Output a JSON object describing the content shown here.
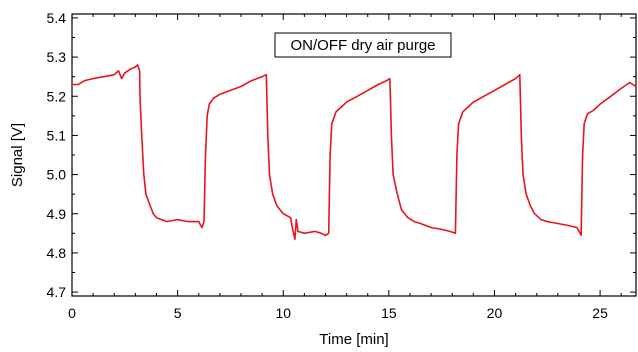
{
  "chart_data": {
    "type": "line",
    "title": "",
    "xlabel": "Time [min]",
    "ylabel": "Signal [V]",
    "xlim": [
      0,
      26.7
    ],
    "ylim": [
      4.69,
      5.41
    ],
    "xticks": [
      0,
      5,
      10,
      15,
      20,
      25
    ],
    "xtick_labels": [
      "0",
      "5",
      "10",
      "15",
      "20",
      "25"
    ],
    "yticks": [
      4.7,
      4.8,
      4.9,
      5.0,
      5.1,
      5.2,
      5.3,
      5.4
    ],
    "ytick_labels": [
      "4.7",
      "4.8",
      "4.9",
      "5.0",
      "5.1",
      "5.2",
      "5.3",
      "5.4"
    ],
    "grid": false,
    "annotation": "ON/OFF dry air purge",
    "series": [
      {
        "color": "#e8141b",
        "points": [
          [
            0.0,
            5.23
          ],
          [
            0.3,
            5.23
          ],
          [
            0.6,
            5.24
          ],
          [
            1.0,
            5.245
          ],
          [
            1.5,
            5.25
          ],
          [
            2.0,
            5.255
          ],
          [
            2.2,
            5.265
          ],
          [
            2.35,
            5.245
          ],
          [
            2.5,
            5.26
          ],
          [
            2.8,
            5.27
          ],
          [
            3.0,
            5.275
          ],
          [
            3.1,
            5.28
          ],
          [
            3.2,
            5.265
          ],
          [
            3.22,
            5.2
          ],
          [
            3.3,
            5.1
          ],
          [
            3.4,
            5.0
          ],
          [
            3.5,
            4.95
          ],
          [
            3.7,
            4.92
          ],
          [
            3.85,
            4.9
          ],
          [
            4.0,
            4.89
          ],
          [
            4.5,
            4.88
          ],
          [
            5.0,
            4.885
          ],
          [
            5.5,
            4.88
          ],
          [
            6.0,
            4.88
          ],
          [
            6.15,
            4.865
          ],
          [
            6.25,
            4.88
          ],
          [
            6.32,
            5.05
          ],
          [
            6.4,
            5.15
          ],
          [
            6.5,
            5.18
          ],
          [
            6.7,
            5.195
          ],
          [
            7.0,
            5.205
          ],
          [
            7.5,
            5.215
          ],
          [
            8.0,
            5.225
          ],
          [
            8.5,
            5.24
          ],
          [
            9.0,
            5.25
          ],
          [
            9.2,
            5.255
          ],
          [
            9.27,
            5.1
          ],
          [
            9.35,
            5.0
          ],
          [
            9.5,
            4.95
          ],
          [
            9.7,
            4.92
          ],
          [
            10.0,
            4.9
          ],
          [
            10.35,
            4.89
          ],
          [
            10.45,
            4.86
          ],
          [
            10.55,
            4.835
          ],
          [
            10.62,
            4.885
          ],
          [
            10.7,
            4.855
          ],
          [
            11.0,
            4.85
          ],
          [
            11.5,
            4.855
          ],
          [
            11.8,
            4.85
          ],
          [
            12.0,
            4.845
          ],
          [
            12.15,
            4.85
          ],
          [
            12.22,
            5.05
          ],
          [
            12.3,
            5.13
          ],
          [
            12.5,
            5.16
          ],
          [
            12.8,
            5.175
          ],
          [
            13.0,
            5.185
          ],
          [
            13.5,
            5.2
          ],
          [
            14.0,
            5.215
          ],
          [
            14.5,
            5.23
          ],
          [
            14.9,
            5.24
          ],
          [
            15.05,
            5.245
          ],
          [
            15.12,
            5.1
          ],
          [
            15.2,
            5.0
          ],
          [
            15.4,
            4.95
          ],
          [
            15.6,
            4.91
          ],
          [
            15.9,
            4.89
          ],
          [
            16.2,
            4.88
          ],
          [
            16.5,
            4.875
          ],
          [
            17.0,
            4.865
          ],
          [
            17.5,
            4.86
          ],
          [
            17.9,
            4.855
          ],
          [
            18.15,
            4.85
          ],
          [
            18.22,
            5.05
          ],
          [
            18.3,
            5.13
          ],
          [
            18.5,
            5.16
          ],
          [
            18.8,
            5.175
          ],
          [
            19.0,
            5.185
          ],
          [
            19.5,
            5.2
          ],
          [
            20.0,
            5.215
          ],
          [
            20.5,
            5.23
          ],
          [
            21.0,
            5.245
          ],
          [
            21.2,
            5.255
          ],
          [
            21.27,
            5.1
          ],
          [
            21.35,
            5.0
          ],
          [
            21.5,
            4.95
          ],
          [
            21.7,
            4.92
          ],
          [
            21.9,
            4.9
          ],
          [
            22.2,
            4.885
          ],
          [
            22.5,
            4.88
          ],
          [
            23.0,
            4.875
          ],
          [
            23.5,
            4.87
          ],
          [
            23.9,
            4.865
          ],
          [
            24.1,
            4.845
          ],
          [
            24.17,
            5.05
          ],
          [
            24.25,
            5.13
          ],
          [
            24.4,
            5.155
          ],
          [
            24.7,
            5.165
          ],
          [
            25.0,
            5.18
          ],
          [
            25.5,
            5.2
          ],
          [
            26.0,
            5.22
          ],
          [
            26.4,
            5.235
          ],
          [
            26.7,
            5.225
          ]
        ]
      }
    ]
  }
}
